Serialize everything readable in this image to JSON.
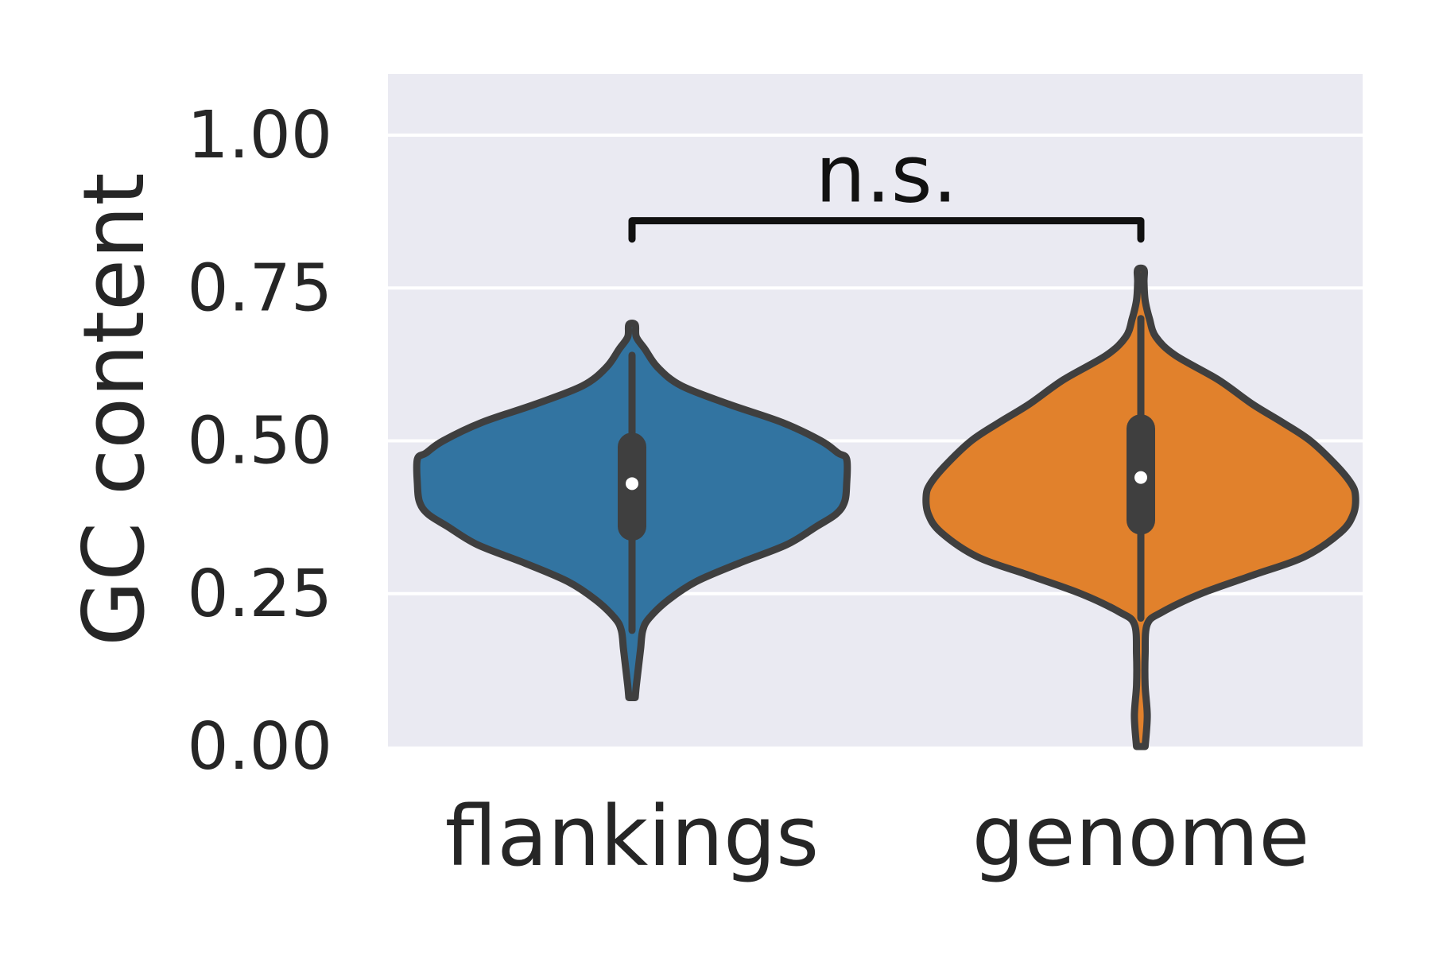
{
  "chart_data": {
    "type": "violin",
    "title": "",
    "xlabel": "",
    "ylabel": "GC content",
    "ylim": [
      0,
      1.1
    ],
    "yticks": [
      "0.00",
      "0.25",
      "0.50",
      "0.75",
      "1.00"
    ],
    "ytick_values": [
      0,
      0.25,
      0.5,
      0.75,
      1.0
    ],
    "grid": true,
    "background_color": "#EAEAF2",
    "categories": [
      "flankings",
      "genome"
    ],
    "series": [
      {
        "category": "flankings",
        "color": "#3274A1",
        "min": 0.08,
        "q1": 0.36,
        "median": 0.43,
        "q3": 0.49,
        "max": 0.64,
        "whisker_low": 0.19,
        "whisker_high": 0.64,
        "density_max_y": 0.69,
        "density": [
          [
            0.08,
            0.0
          ],
          [
            0.1,
            0.02
          ],
          [
            0.13,
            0.03
          ],
          [
            0.16,
            0.04
          ],
          [
            0.19,
            0.05
          ],
          [
            0.21,
            0.08
          ],
          [
            0.24,
            0.17
          ],
          [
            0.27,
            0.3
          ],
          [
            0.3,
            0.5
          ],
          [
            0.33,
            0.72
          ],
          [
            0.36,
            0.86
          ],
          [
            0.38,
            0.95
          ],
          [
            0.4,
            0.99
          ],
          [
            0.43,
            1.0
          ],
          [
            0.47,
            1.0
          ],
          [
            0.48,
            0.96
          ],
          [
            0.5,
            0.88
          ],
          [
            0.53,
            0.7
          ],
          [
            0.56,
            0.45
          ],
          [
            0.59,
            0.23
          ],
          [
            0.62,
            0.12
          ],
          [
            0.65,
            0.06
          ],
          [
            0.67,
            0.02
          ],
          [
            0.69,
            0.0
          ]
        ]
      },
      {
        "category": "genome",
        "color": "#E1812C",
        "min": 0.0,
        "q1": 0.37,
        "median": 0.44,
        "q3": 0.52,
        "max": 0.7,
        "whisker_low": 0.21,
        "whisker_high": 0.7,
        "density_max_y": 0.78,
        "density": [
          [
            0.0,
            0.02
          ],
          [
            0.05,
            0.03
          ],
          [
            0.1,
            0.02
          ],
          [
            0.15,
            0.02
          ],
          [
            0.2,
            0.03
          ],
          [
            0.22,
            0.1
          ],
          [
            0.25,
            0.28
          ],
          [
            0.28,
            0.52
          ],
          [
            0.31,
            0.76
          ],
          [
            0.35,
            0.93
          ],
          [
            0.38,
            0.99
          ],
          [
            0.41,
            1.0
          ],
          [
            0.43,
            0.98
          ],
          [
            0.46,
            0.91
          ],
          [
            0.5,
            0.79
          ],
          [
            0.53,
            0.66
          ],
          [
            0.56,
            0.52
          ],
          [
            0.6,
            0.36
          ],
          [
            0.64,
            0.16
          ],
          [
            0.67,
            0.07
          ],
          [
            0.7,
            0.04
          ],
          [
            0.73,
            0.02
          ],
          [
            0.76,
            0.01
          ],
          [
            0.78,
            0.0
          ]
        ]
      }
    ],
    "annotations": [
      {
        "text": "n.s.",
        "between": [
          "flankings",
          "genome"
        ],
        "bracket_y": 0.86,
        "bracket_drop": 0.03
      }
    ]
  }
}
